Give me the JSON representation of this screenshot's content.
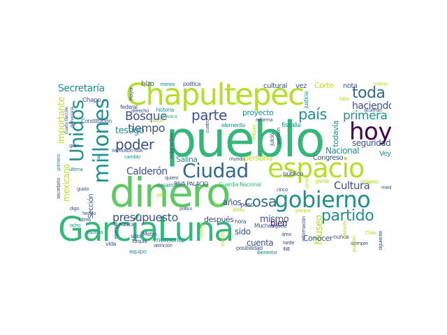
{
  "palette": {
    "purple": "#440154",
    "indigo": "#3b528b",
    "blue": "#31688e",
    "teal": "#21908d",
    "green": "#35b779",
    "lightgreen": "#5ec962",
    "lime": "#b5de2b",
    "yellow": "#fde725"
  },
  "words": [
    {
      "text": "GarcíaLuna",
      "color": "green"
    },
    {
      "text": "dinero",
      "color": "lightgreen"
    },
    {
      "text": "pueblo",
      "color": "green"
    },
    {
      "text": "Chapultepec",
      "color": "lime"
    },
    {
      "text": "espacio",
      "color": "lime"
    },
    {
      "text": "gobierno",
      "color": "teal"
    },
    {
      "text": "Ciudad",
      "color": "blue"
    },
    {
      "text": "hoy",
      "color": "purple"
    },
    {
      "text": "millones",
      "color": "teal"
    },
    {
      "text": "Unidos",
      "color": "teal"
    },
    {
      "text": "partido",
      "color": "teal"
    },
    {
      "text": "toda",
      "color": "blue"
    },
    {
      "text": "Bosque",
      "color": "indigo"
    },
    {
      "text": "parte",
      "color": "indigo"
    },
    {
      "text": "país",
      "color": "teal"
    },
    {
      "text": "poder",
      "color": "indigo"
    },
    {
      "text": "cosa",
      "color": "blue"
    },
    {
      "text": "presupuesto",
      "color": "indigo"
    },
    {
      "text": "haciendo",
      "color": "indigo"
    },
    {
      "text": "primera",
      "color": "teal"
    },
    {
      "text": "Cultura",
      "color": "indigo"
    },
    {
      "text": "tiempo",
      "color": "indigo"
    },
    {
      "text": "testigo",
      "color": "teal"
    },
    {
      "text": "Secretaría",
      "color": "teal"
    },
    {
      "text": "Calderón",
      "color": "indigo"
    },
    {
      "text": "importante",
      "color": "lime"
    },
    {
      "text": "mexicano",
      "color": "lime"
    },
    {
      "text": "Museo",
      "color": "lime"
    },
    {
      "text": "seguridad",
      "color": "indigo"
    },
    {
      "text": "Nacional",
      "color": "teal"
    },
    {
      "text": "cuenta",
      "color": "indigo"
    },
    {
      "text": "mismo",
      "color": "indigo"
    },
    {
      "text": "bien",
      "color": "purple"
    },
    {
      "text": "sido",
      "color": "indigo"
    },
    {
      "text": "años",
      "color": "indigo"
    },
    {
      "text": "Salina",
      "color": "teal"
    },
    {
      "text": "proyecto",
      "color": "teal"
    },
    {
      "text": "después",
      "color": "indigo"
    },
    {
      "text": "persona",
      "color": "lime"
    },
    {
      "text": "Congreso",
      "color": "indigo"
    },
    {
      "text": "Conocer",
      "color": "indigo"
    },
    {
      "text": "todavía",
      "color": "teal"
    },
    {
      "text": "Veytia",
      "color": "teal"
    },
    {
      "text": "cultural",
      "color": "indigo"
    },
    {
      "text": "vez",
      "color": "indigo"
    },
    {
      "text": "Corte",
      "color": "lime"
    },
    {
      "text": "nota",
      "color": "indigo"
    },
    {
      "text": "hizo",
      "color": "indigo"
    },
    {
      "text": "momento",
      "color": "teal"
    },
    {
      "text": "público",
      "color": "indigo"
    },
    {
      "text": "peso",
      "color": "indigo"
    },
    {
      "text": "hora",
      "color": "indigo"
    },
    {
      "text": "Sección",
      "color": "indigo"
    },
    {
      "text": "ir",
      "color": "teal"
    },
    {
      "text": "Chapo",
      "color": "indigo"
    },
    {
      "text": "Constitución",
      "color": "indigo"
    },
    {
      "text": "federal",
      "color": "indigo"
    },
    {
      "text": "historia",
      "color": "teal"
    },
    {
      "text": "política",
      "color": "indigo"
    },
    {
      "text": "menos",
      "color": "teal"
    },
    {
      "text": "Mayor",
      "color": "indigo"
    },
    {
      "text": "derecho",
      "color": "indigo"
    },
    {
      "text": "cambio",
      "color": "teal"
    },
    {
      "text": "quiero",
      "color": "indigo"
    },
    {
      "text": "RIVA PALACIO",
      "color": "indigo"
    },
    {
      "text": "Guardia Nacional",
      "color": "green"
    },
    {
      "text": "desarrollo",
      "color": "teal"
    },
    {
      "text": "mundo",
      "color": "indigo"
    },
    {
      "text": "elemento",
      "color": "teal"
    },
    {
      "text": "fiscalía",
      "color": "teal"
    },
    {
      "text": "justicia",
      "color": "teal"
    },
    {
      "text": "reforma",
      "color": "indigo"
    },
    {
      "text": "juicio",
      "color": "indigo"
    },
    {
      "text": "pensión",
      "color": "indigo"
    },
    {
      "text": "trabajo",
      "color": "lime"
    },
    {
      "text": "apoyo",
      "color": "lime"
    },
    {
      "text": "cuatro",
      "color": "indigo"
    },
    {
      "text": "migrantes",
      "color": "indigo"
    },
    {
      "text": "Oaxaca",
      "color": "green"
    },
    {
      "text": "fraude",
      "color": "lime"
    },
    {
      "text": "acuerdo",
      "color": "indigo"
    },
    {
      "text": "bodega",
      "color": "lime"
    },
    {
      "text": "gente",
      "color": "lime"
    },
    {
      "text": "dólares",
      "color": "lime"
    },
    {
      "text": "cinco",
      "color": "indigo"
    },
    {
      "text": "medio",
      "color": "indigo"
    },
    {
      "text": "parque",
      "color": "lime"
    },
    {
      "text": "delito",
      "color": "lime"
    },
    {
      "text": "ley",
      "color": "lime"
    },
    {
      "text": "jefe",
      "color": "lime"
    },
    {
      "text": "político",
      "color": "indigo"
    },
    {
      "text": "Muchas",
      "color": "indigo"
    },
    {
      "text": "siguele",
      "color": "indigo"
    },
    {
      "text": "área",
      "color": "indigo"
    },
    {
      "text": "tarde",
      "color": "indigo"
    },
    {
      "text": "INE",
      "color": "indigo"
    },
    {
      "text": "información",
      "color": "indigo"
    },
    {
      "text": "posibilidad",
      "color": "indigo"
    },
    {
      "text": "Bienestar",
      "color": "teal"
    },
    {
      "text": "siempre",
      "color": "indigo"
    },
    {
      "text": "siguiente",
      "color": "indigo"
    },
    {
      "text": "Chile",
      "color": "lime"
    },
    {
      "text": "puedan",
      "color": "lime"
    },
    {
      "text": "nunca",
      "color": "indigo"
    },
    {
      "text": "Metro",
      "color": "indigo"
    },
    {
      "text": "sólo",
      "color": "indigo"
    },
    {
      "text": "Turquía",
      "color": "indigo"
    },
    {
      "text": "Pública",
      "color": "indigo"
    },
    {
      "text": "ejemplo",
      "color": "indigo"
    },
    {
      "text": "atención",
      "color": "indigo"
    },
    {
      "text": "equipo",
      "color": "teal"
    },
    {
      "text": "vida",
      "color": "indigo"
    },
    {
      "text": "istmo",
      "color": "indigo"
    },
    {
      "text": "hecho",
      "color": "indigo"
    },
    {
      "text": "ocho",
      "color": "teal"
    },
    {
      "text": "sistema",
      "color": "teal"
    },
    {
      "text": "digo",
      "color": "indigo"
    },
    {
      "text": "gusto",
      "color": "indigo"
    },
    {
      "text": "última",
      "color": "teal"
    },
    {
      "text": "gran",
      "color": "indigo"
    },
    {
      "text": "RAYMUNDO RIVA",
      "color": "indigo"
    },
    {
      "text": "secretario",
      "color": "indigo"
    },
    {
      "text": "primero",
      "color": "teal"
    },
    {
      "text": "democracia",
      "color": "indigo"
    },
    {
      "text": "Cuarta Elección",
      "color": "indigo"
    },
    {
      "text": "incluso",
      "color": "lime"
    },
    {
      "text": "evento",
      "color": "lime"
    },
    {
      "text": "Adelante",
      "color": "lime"
    },
    {
      "text": "general",
      "color": "lime"
    },
    {
      "text": "falta",
      "color": "lime"
    }
  ]
}
